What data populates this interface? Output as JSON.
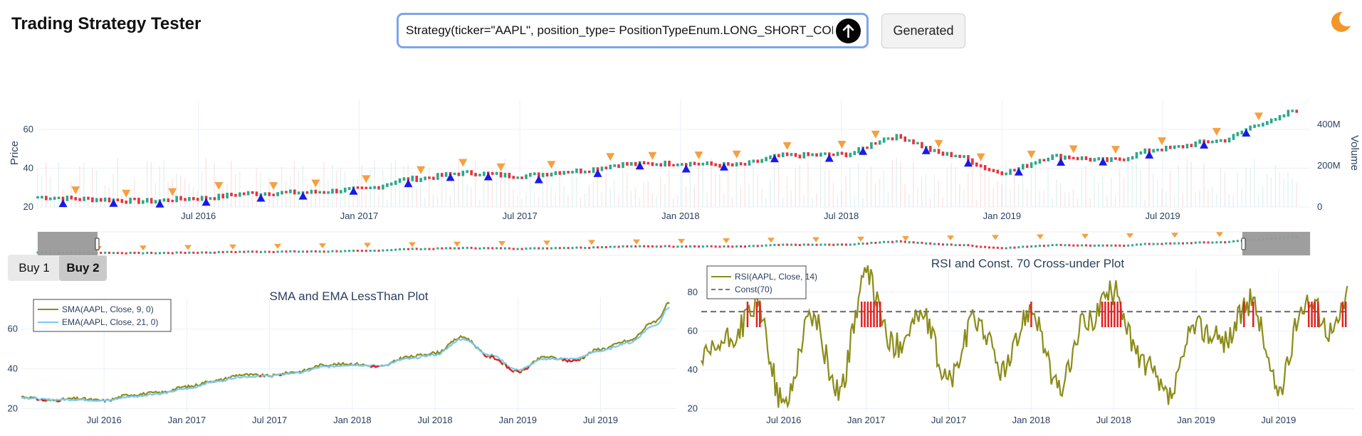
{
  "app": {
    "title": "Trading Strategy Tester"
  },
  "query": {
    "value": "Strategy(ticker=\"AAPL\", position_type= PositionTypeEnum.LONG_SHORT_COMBIN",
    "submit_icon": "arrow-up-icon"
  },
  "generated_button": {
    "label": "Generated"
  },
  "theme_toggle": {
    "icon": "moon-icon",
    "color": "#f0962a"
  },
  "tabs": [
    {
      "label": "Buy 1"
    },
    {
      "label": "Buy 2",
      "active": true
    }
  ],
  "chart_data": [
    {
      "type": "candlestick",
      "title": "",
      "ylabel": "Price",
      "y2label": "Volume",
      "ylim": [
        20,
        68
      ],
      "y_ticks": [
        20,
        40,
        60
      ],
      "y2_ticks": [
        "0",
        "200M",
        "400M"
      ],
      "x_ticks": [
        "Jul 2016",
        "Jan 2017",
        "Jul 2017",
        "Jan 2018",
        "Jul 2018",
        "Jan 2019",
        "Jul 2019"
      ],
      "x": [
        "2016-01",
        "2016-03",
        "2016-05",
        "2016-07",
        "2016-09",
        "2016-11",
        "2017-01",
        "2017-03",
        "2017-05",
        "2017-07",
        "2017-09",
        "2017-11",
        "2018-01",
        "2018-03",
        "2018-05",
        "2018-07",
        "2018-09",
        "2018-11",
        "2019-01",
        "2019-03",
        "2019-05",
        "2019-07",
        "2019-09",
        "2019-11",
        "2019-12"
      ],
      "close": [
        25,
        24,
        23,
        24.5,
        27,
        27.5,
        29,
        34.5,
        37.5,
        36,
        38.5,
        42,
        42.5,
        41.5,
        46.5,
        47,
        56,
        47,
        38,
        46,
        44,
        50,
        54,
        64,
        70
      ],
      "candle_colors": {
        "up": "#2aa889",
        "down": "#e8323c"
      },
      "markers": {
        "entry": {
          "color": "#1a1ae6",
          "shape": "triangle-up"
        },
        "exit": {
          "color": "#f5a040",
          "shape": "triangle-down"
        }
      },
      "range_selector": true
    },
    {
      "type": "line",
      "title": "SMA and EMA LessThan Plot",
      "x_ticks": [
        "Jul 2016",
        "Jan 2017",
        "Jul 2017",
        "Jan 2018",
        "Jul 2018",
        "Jan 2019",
        "Jul 2019"
      ],
      "y_ticks": [
        20,
        40,
        60
      ],
      "ylim": [
        18,
        76
      ],
      "x": [
        "2016-01",
        "2016-03",
        "2016-05",
        "2016-07",
        "2016-09",
        "2016-11",
        "2017-01",
        "2017-03",
        "2017-05",
        "2017-07",
        "2017-09",
        "2017-11",
        "2018-01",
        "2018-03",
        "2018-05",
        "2018-07",
        "2018-09",
        "2018-11",
        "2019-01",
        "2019-03",
        "2019-05",
        "2019-07",
        "2019-09",
        "2019-11",
        "2019-12"
      ],
      "series": [
        {
          "name": "SMA(AAPL, Close, 9, 0)",
          "color": "#8c8c1a",
          "values": [
            26,
            24,
            25,
            24,
            27,
            28,
            31,
            34,
            37,
            36.5,
            38.5,
            42,
            42.5,
            41,
            46,
            48,
            56,
            46,
            38.5,
            46,
            44,
            50,
            54,
            64,
            73
          ]
        },
        {
          "name": "EMA(AAPL, Close, 21, 0)",
          "color": "#7ec8f0",
          "values": [
            25.5,
            24.5,
            24.5,
            24,
            26,
            27.5,
            30,
            33.5,
            36,
            36.5,
            38,
            41,
            42,
            41.5,
            45,
            47,
            55,
            47,
            39.5,
            45,
            45,
            49,
            53,
            62,
            71
          ]
        }
      ],
      "highlight_color": "#e32020",
      "legend": "top-left"
    },
    {
      "type": "line",
      "title": "RSI and Const. 70 Cross-under Plot",
      "x_ticks": [
        "Jul 2016",
        "Jan 2017",
        "Jul 2017",
        "Jan 2018",
        "Jul 2018",
        "Jan 2019",
        "Jul 2019"
      ],
      "y_ticks": [
        20,
        40,
        60,
        80
      ],
      "ylim": [
        18,
        92
      ],
      "x": [
        "2016-01",
        "2016-03",
        "2016-05",
        "2016-07",
        "2016-09",
        "2016-11",
        "2017-01",
        "2017-03",
        "2017-05",
        "2017-07",
        "2017-09",
        "2017-11",
        "2018-01",
        "2018-03",
        "2018-05",
        "2018-07",
        "2018-09",
        "2018-11",
        "2019-01",
        "2019-03",
        "2019-05",
        "2019-07",
        "2019-09",
        "2019-11",
        "2019-12"
      ],
      "series": [
        {
          "name": "RSI(AAPL, Close, 14)",
          "color": "#8c8c1a",
          "values": [
            45,
            55,
            72,
            22,
            68,
            30,
            88,
            52,
            68,
            35,
            66,
            40,
            72,
            30,
            65,
            80,
            45,
            26,
            62,
            55,
            75,
            30,
            76,
            60,
            78
          ]
        },
        {
          "name": "Const(70)",
          "color": "#777777",
          "dash": true,
          "values": [
            70,
            70,
            70,
            70,
            70,
            70,
            70,
            70,
            70,
            70,
            70,
            70,
            70,
            70,
            70,
            70,
            70,
            70,
            70,
            70,
            70,
            70,
            70,
            70,
            70
          ]
        }
      ],
      "highlight_color": "#e32020",
      "legend": "top-left"
    }
  ]
}
